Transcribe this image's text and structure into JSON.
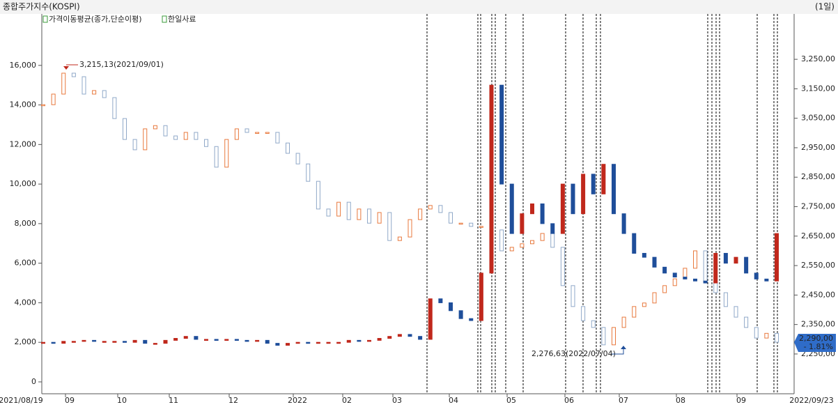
{
  "chart_data": {
    "type": "candlestick",
    "period": "(1일)",
    "indicator": "가격이동평균(종가,단순이평)",
    "series": [
      {
        "name": "종합주가지수(KOSPI)",
        "axis": "y2",
        "up_color": "#e8783c",
        "down_color": "#8fa8c8",
        "values": [
          3096,
          3132,
          3203,
          3191,
          3132,
          3144,
          3120,
          3049,
          2978,
          2943,
          3014,
          3025,
          2990,
          2978,
          3002,
          2978,
          2954,
          2884,
          2978,
          3014,
          3002,
          3002,
          3002,
          2966,
          2931,
          2895,
          2836,
          2742,
          2718,
          2765,
          2706,
          2742,
          2694,
          2730,
          2635,
          2647,
          2706,
          2742,
          2754,
          2730,
          2694,
          2694,
          2683,
          2683,
          2671,
          2600,
          2612,
          2624,
          2635,
          2659,
          2612,
          2482,
          2411,
          2363,
          2340,
          2281,
          2340,
          2375,
          2411,
          2423,
          2458,
          2482,
          2505,
          2541,
          2600,
          2494,
          2458,
          2411,
          2375,
          2340,
          2304,
          2320,
          2290
        ]
      },
      {
        "name": "한일사료",
        "axis": "y",
        "up_color": "#c0281c",
        "down_color": "#1f4e9a",
        "values": [
          2000,
          1950,
          2050,
          2050,
          2100,
          2050,
          2050,
          2050,
          2000,
          2100,
          1950,
          1950,
          2100,
          2200,
          2300,
          2150,
          2150,
          2100,
          2150,
          2100,
          2050,
          2100,
          1950,
          1850,
          1950,
          2000,
          1950,
          2000,
          2000,
          2000,
          2100,
          2050,
          2100,
          2200,
          2300,
          2400,
          2300,
          2150,
          4200,
          4000,
          3600,
          3200,
          3100,
          5500,
          15000,
          10000,
          7500,
          8500,
          9000,
          8000,
          7500,
          10000,
          8500,
          10500,
          9500,
          11000,
          8500,
          7500,
          6500,
          6300,
          5800,
          5500,
          5300,
          5200,
          5100,
          5000,
          6500,
          6000,
          6300,
          5500,
          5200,
          5100,
          7500
        ]
      }
    ],
    "x_labels": [
      "2021/08/19",
      "09",
      "10",
      "11",
      "12",
      "2022",
      "02",
      "03",
      "04",
      "05",
      "06",
      "07",
      "08",
      "09",
      "2022/09/23"
    ],
    "ylim": [
      -600,
      18600
    ],
    "yticks": [
      0,
      {
        "value": 2000,
        "label": "2,000"
      },
      {
        "value": 4000,
        "label": "4,000"
      },
      {
        "value": 6000,
        "label": "6,000"
      },
      {
        "value": 8000,
        "label": "8,000"
      },
      {
        "value": 10000,
        "label": "10,000"
      },
      {
        "value": 12000,
        "label": "12,000"
      },
      {
        "value": 14000,
        "label": "14,000"
      },
      {
        "value": 16000,
        "label": "16,000"
      }
    ],
    "y2lim": [
      2115,
      3404
    ],
    "y2ticks": [
      {
        "value": 2250,
        "label": "2,250,00"
      },
      {
        "value": 2350,
        "label": "2,350,00"
      },
      {
        "value": 2450,
        "label": "2,450,00"
      },
      {
        "value": 2550,
        "label": "2,550,00"
      },
      {
        "value": 2650,
        "label": "2,650,00"
      },
      {
        "value": 2750,
        "label": "2,750,00"
      },
      {
        "value": 2850,
        "label": "2,850,00"
      },
      {
        "value": 2950,
        "label": "2,950,00"
      },
      {
        "value": 3050,
        "label": "3,050,00"
      },
      {
        "value": 3150,
        "label": "3,150,00"
      },
      {
        "value": 3250,
        "label": "3,250,00"
      }
    ],
    "annotations": [
      {
        "text": "3,215,13(2021/09/01)",
        "color": "#c0281c"
      },
      {
        "text": "2,276,63(2022/07/04)",
        "color": "#1f4e9a"
      }
    ],
    "current_label": "2,290,00",
    "change_label": "- 1.81%"
  }
}
